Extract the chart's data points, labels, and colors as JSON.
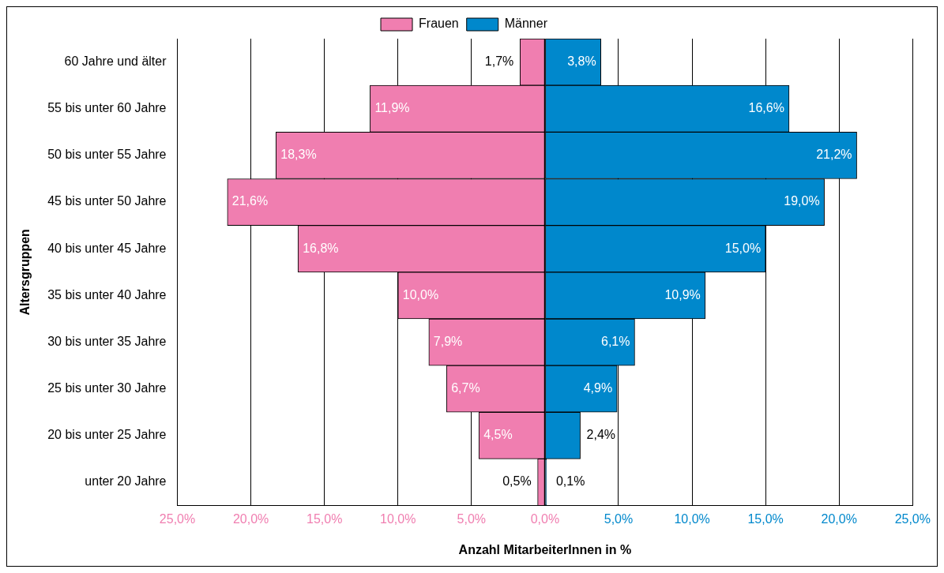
{
  "chart_data": {
    "type": "bar",
    "orientation": "horizontal",
    "xlabel": "Anzahl MitarbeiterInnen in %",
    "ylabel": "Altersgruppen",
    "categories": [
      "60 Jahre und älter",
      "55 bis unter 60 Jahre",
      "50 bis unter 55 Jahre",
      "45 bis unter 50 Jahre",
      "40 bis unter 45 Jahre",
      "35 bis unter 40 Jahre",
      "30 bis unter 35 Jahre",
      "25 bis unter 30 Jahre",
      "20 bis unter 25 Jahre",
      "unter 20 Jahre"
    ],
    "series": [
      {
        "name": "Frauen",
        "color": "#f07eb0",
        "values": [
          1.7,
          11.9,
          18.3,
          21.6,
          16.8,
          10.0,
          7.9,
          6.7,
          4.5,
          0.5
        ],
        "base": [
          -1.7,
          -11.9,
          -18.3,
          -21.6,
          -16.8,
          -10.0,
          -7.9,
          -6.7,
          -4.5,
          -0.5
        ],
        "value_labels": [
          "1,7%",
          "11,9%",
          "18,3%",
          "21,6%",
          "16,8%",
          "10,0%",
          "7,9%",
          "6,7%",
          "4,5%",
          "0,5%"
        ]
      },
      {
        "name": "Männer",
        "color": "#0088cc",
        "values": [
          3.8,
          16.6,
          21.2,
          19.0,
          15.0,
          10.9,
          6.1,
          4.9,
          2.4,
          0.1
        ],
        "value_labels": [
          "3,8%",
          "16,6%",
          "21,2%",
          "19,0%",
          "15,0%",
          "10,9%",
          "6,1%",
          "4,9%",
          "2,4%",
          "0,1%"
        ]
      }
    ],
    "xlim": [
      -25,
      25
    ],
    "xticks": [
      {
        "value": -25,
        "label": "25,0%"
      },
      {
        "value": -20,
        "label": "20,0%"
      },
      {
        "value": -15,
        "label": "15,0%"
      },
      {
        "value": -10,
        "label": "10,0%"
      },
      {
        "value": -5,
        "label": "5,0%"
      },
      {
        "value": 0,
        "label": "0,0%"
      },
      {
        "value": 5,
        "label": "5,0%"
      },
      {
        "value": 10,
        "label": "10,0%"
      },
      {
        "value": 15,
        "label": "15,0%"
      },
      {
        "value": 20,
        "label": "20,0%"
      },
      {
        "value": 25,
        "label": "25,0%"
      }
    ],
    "grid": "x",
    "legend": "top"
  }
}
